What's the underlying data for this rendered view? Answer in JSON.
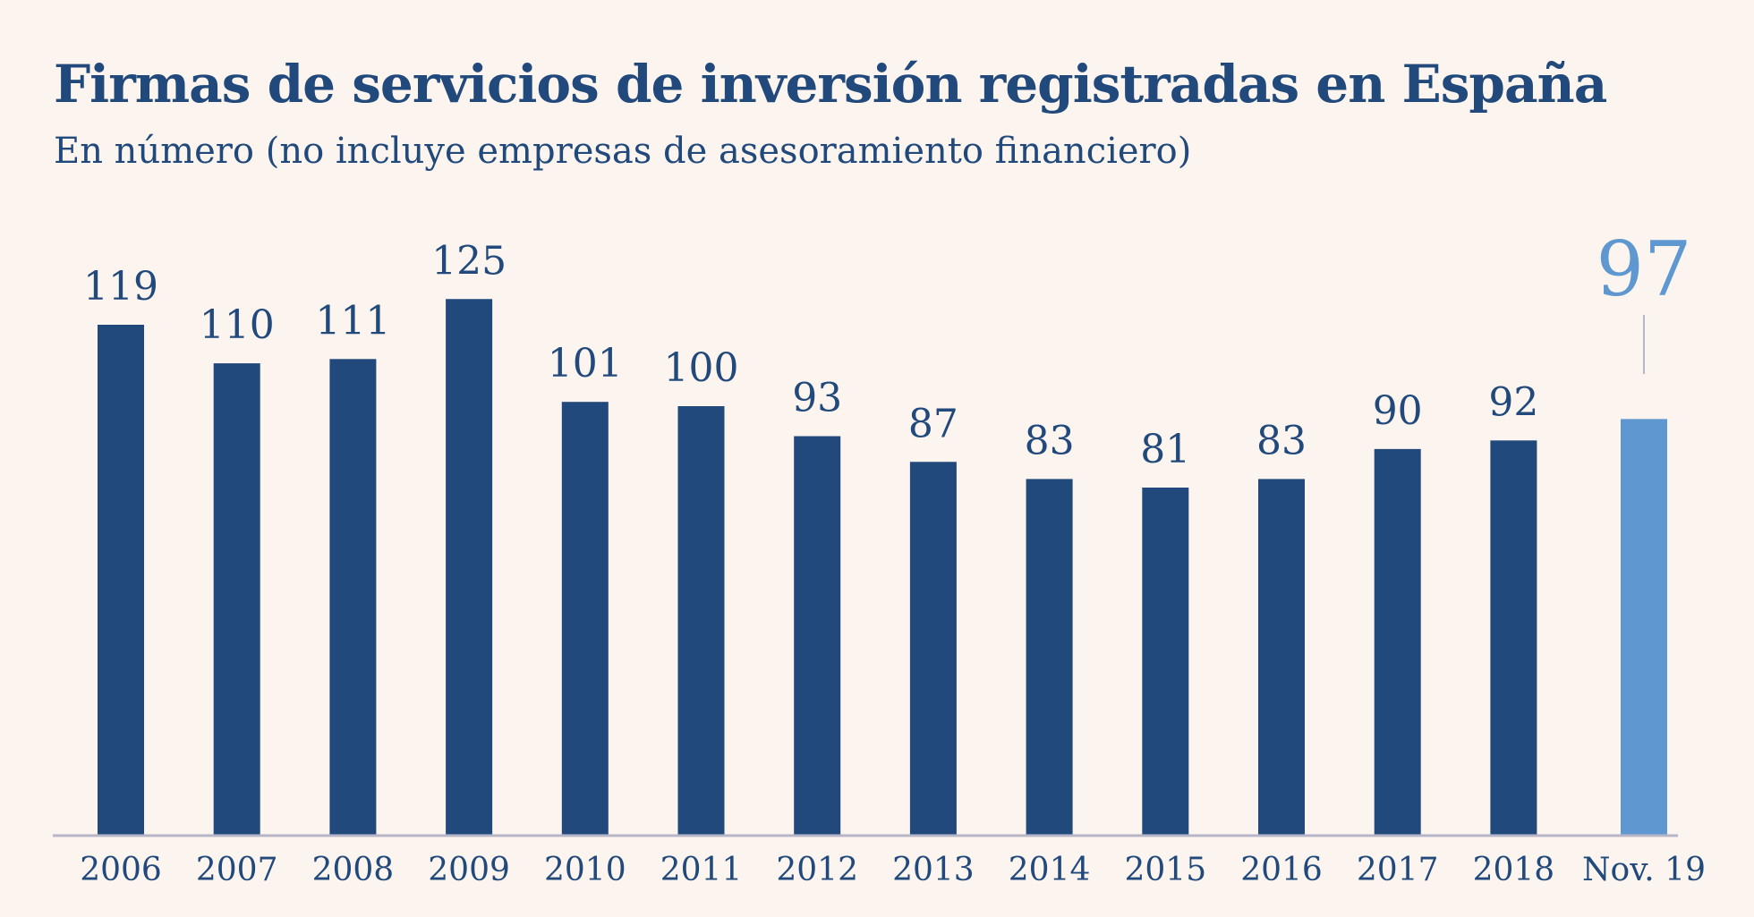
{
  "title": "Firmas de servicios de inversión registradas en España",
  "subtitle": "En número (no incluye empresas de asesoramiento financiero)",
  "colors": {
    "background": "#fcf4ee",
    "bar": "#21497c",
    "highlight": "#5f97d0",
    "axis": "#b7b6c8",
    "text": "#21497c"
  },
  "chart_data": {
    "type": "bar",
    "title": "Firmas de servicios de inversión registradas en España",
    "subtitle": "En número (no incluye empresas de asesoramiento financiero)",
    "categories": [
      "2006",
      "2007",
      "2008",
      "2009",
      "2010",
      "2011",
      "2012",
      "2013",
      "2014",
      "2015",
      "2016",
      "2017",
      "2018",
      "Nov. 19"
    ],
    "values": [
      119,
      110,
      111,
      125,
      101,
      100,
      93,
      87,
      83,
      81,
      83,
      90,
      92,
      97
    ],
    "highlight_category": "Nov. 19",
    "xlabel": "",
    "ylabel": "",
    "ylim": [
      0,
      125
    ],
    "grid": false,
    "legend": "none"
  }
}
